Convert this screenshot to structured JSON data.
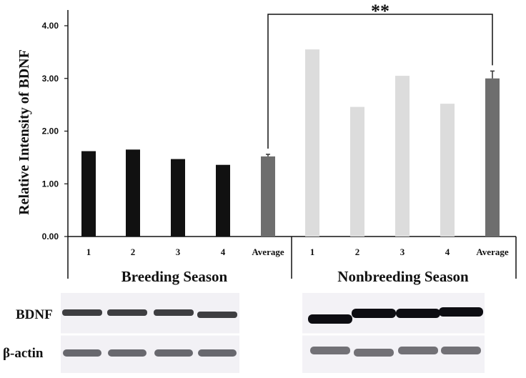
{
  "chart_data": {
    "type": "bar",
    "ylabel": "Relative Intensity of BDNF",
    "yticks": [
      "0.00",
      "1.00",
      "2.00",
      "3.00",
      "4.00"
    ],
    "ylim": [
      0,
      4.3
    ],
    "categories": [
      "1",
      "2",
      "3",
      "4",
      "Average",
      "1",
      "2",
      "3",
      "4",
      "Average"
    ],
    "values": [
      1.62,
      1.65,
      1.47,
      1.36,
      1.52,
      3.55,
      2.46,
      3.05,
      2.52,
      3.0
    ],
    "errors": [
      0,
      0,
      0,
      0,
      0.04,
      0,
      0,
      0,
      0,
      0.14
    ],
    "bar_colors": [
      "#111111",
      "#111111",
      "#111111",
      "#111111",
      "#6e6e6e",
      "#dcdcdc",
      "#dcdcdc",
      "#dcdcdc",
      "#dcdcdc",
      "#6e6e6e"
    ],
    "groups": [
      {
        "name": "Breeding Season",
        "indices": [
          0,
          1,
          2,
          3,
          4
        ]
      },
      {
        "name": "Nonbreeding Season",
        "indices": [
          5,
          6,
          7,
          8,
          9
        ]
      }
    ],
    "significance": {
      "from_index": 4,
      "to_index": 9,
      "label": "**"
    }
  },
  "blots": {
    "rows": [
      {
        "label": "BDNF"
      },
      {
        "label": "β-actin"
      }
    ],
    "lanes_per_panel": 4
  }
}
